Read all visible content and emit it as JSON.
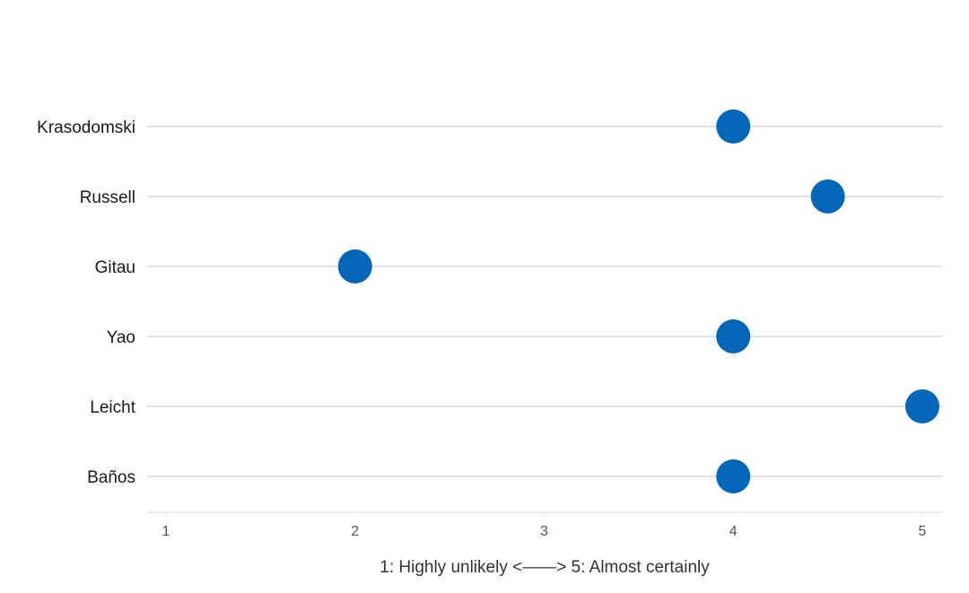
{
  "chart_data": {
    "type": "scatter",
    "title": "",
    "xlabel": "1: Highly unlikely <——> 5: Almost certainly",
    "ylabel": "",
    "xlim": [
      1,
      5
    ],
    "xticks": [
      "1",
      "2",
      "3",
      "4",
      "5"
    ],
    "categories": [
      "Krasodomski",
      "Russell",
      "Gitau",
      "Yao",
      "Leicht",
      "Baños"
    ],
    "values": [
      4,
      4.5,
      2,
      4,
      5,
      4
    ],
    "grid": "horizontal lines per category",
    "legend": "none"
  },
  "colors": {
    "marker": "#0466b8",
    "gridline": "#d9d9d9",
    "axis_line": "#e6e6e6"
  }
}
